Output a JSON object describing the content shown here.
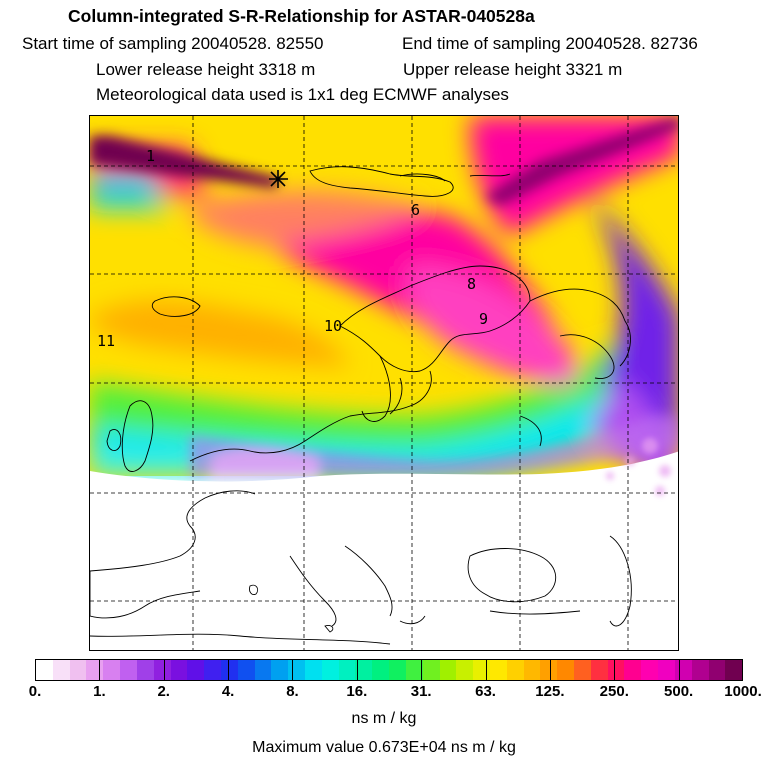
{
  "header": {
    "title": "Column-integrated S-R-Relationship for ASTAR-040528a",
    "start_time": "Start time of sampling 20040528. 82550",
    "end_time": "End time of sampling 20040528. 82736",
    "lower_release": "Lower release height 3318 m",
    "upper_release": "Upper release height 3321 m",
    "met_data": "Meteorological data used is 1x1 deg ECMWF analyses"
  },
  "map": {
    "contour_labels": [
      "1",
      "11",
      "10",
      "9",
      "8",
      "6"
    ],
    "release_marker_icon": "star-marker-icon"
  },
  "colorbar": {
    "ticks": [
      "0.",
      "1.",
      "2.",
      "4.",
      "8.",
      "16.",
      "31.",
      "63.",
      "125.",
      "250.",
      "500.",
      "1000."
    ],
    "colors": [
      "#ffffff",
      "#f8e0f8",
      "#f0c0f0",
      "#e8a0f0",
      "#d880f0",
      "#c060f0",
      "#a040e8",
      "#9020e0",
      "#7a10e0",
      "#6010e8",
      "#4020f0",
      "#2030f0",
      "#1050f0",
      "#0878f0",
      "#00a0f0",
      "#00c0f0",
      "#00e0f0",
      "#00f0e0",
      "#00f0c0",
      "#00f0a0",
      "#00f080",
      "#10f060",
      "#40f040",
      "#70f020",
      "#a0f000",
      "#c8f000",
      "#e8f000",
      "#ffe800",
      "#ffd000",
      "#ffb800",
      "#ffa000",
      "#ff8800",
      "#ff6020",
      "#ff3040",
      "#ff1060",
      "#ff0090",
      "#ff00b0",
      "#f000c0",
      "#d000b0",
      "#b00090",
      "#900070",
      "#700050"
    ],
    "units": "ns m / kg"
  },
  "footer": {
    "max_value": "Maximum value  0.673E+04 ns m / kg"
  }
}
